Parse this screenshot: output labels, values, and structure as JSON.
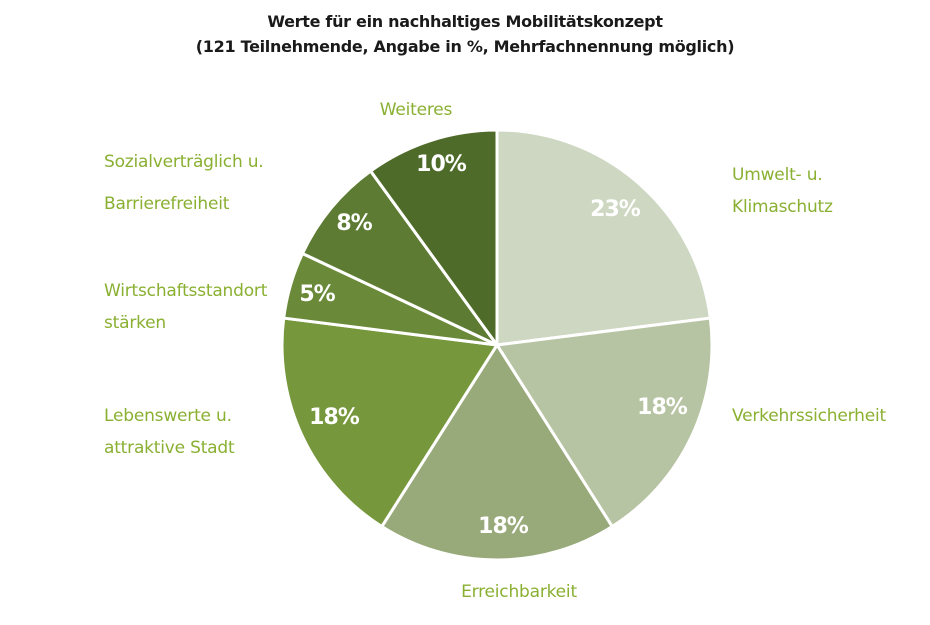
{
  "chart_data": {
    "type": "pie",
    "title": "Werte für ein nachhaltiges Mobilitätskonzept",
    "subtitle": "(121 Teilnehmende, Angabe in %, Mehrfachnennung möglich)",
    "categories": [
      [
        "Umwelt- u.",
        "Klimaschutz"
      ],
      [
        "Verkehrssicherheit"
      ],
      [
        "Erreichbarkeit"
      ],
      [
        "Lebenswerte u.",
        "attraktive Stadt"
      ],
      [
        "Wirtschaftsstandort",
        "stärken"
      ],
      [
        "Sozialverträglich u.",
        "Barrierefreiheit"
      ],
      [
        "Weiteres"
      ]
    ],
    "values": [
      23,
      18,
      18,
      18,
      5,
      8,
      10
    ],
    "value_labels": [
      "23%",
      "18%",
      "18%",
      "18%",
      "5%",
      "8%",
      "10%"
    ],
    "colors": [
      "#cdd7c1",
      "#b7c4a3",
      "#98a97a",
      "#76973b",
      "#6a8a3a",
      "#5d7b33",
      "#4f6b2a"
    ],
    "label_color": "#8ab032",
    "start": "12 o'clock",
    "direction": "clockwise"
  }
}
